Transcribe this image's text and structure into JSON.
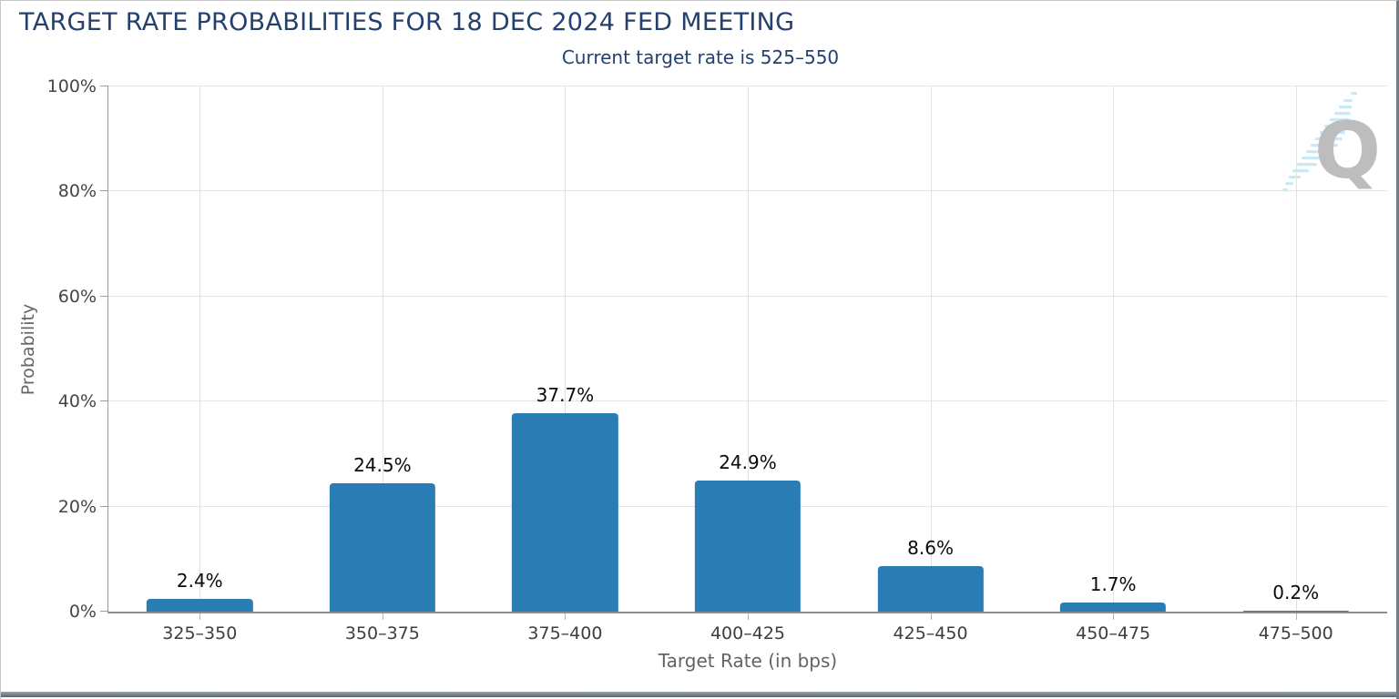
{
  "header": {
    "title": "TARGET RATE PROBABILITIES FOR 18 DEC 2024 FED MEETING",
    "subtitle_prefix": "Current target rate is ",
    "subtitle_value": "525–550"
  },
  "chart_data": {
    "type": "bar",
    "title": "TARGET RATE PROBABILITIES FOR 18 DEC 2024 FED MEETING",
    "subtitle": "Current target rate is 525–550",
    "categories": [
      "325–350",
      "350–375",
      "375–400",
      "400–425",
      "425–450",
      "450–475",
      "475–500"
    ],
    "values": [
      2.4,
      24.5,
      37.7,
      24.9,
      8.6,
      1.7,
      0.2
    ],
    "value_labels": [
      "2.4%",
      "24.5%",
      "37.7%",
      "24.9%",
      "8.6%",
      "1.7%",
      "0.2%"
    ],
    "xlabel": "Target Rate (in bps)",
    "ylabel": "Probability",
    "ylim": [
      0,
      100
    ],
    "ytick_values": [
      0,
      20,
      40,
      60,
      80,
      100
    ],
    "ytick_labels": [
      "0%",
      "20%",
      "40%",
      "60%",
      "80%",
      "100%"
    ],
    "bar_color": "#2a7cb5",
    "grid": true,
    "legend": false
  },
  "logo": {
    "letter": "Q"
  },
  "colors": {
    "title_navy": "#24406e",
    "bar_blue": "#2a7cb5",
    "gridline": "#e4e4e4",
    "axis_gray": "#9b9b9b"
  }
}
